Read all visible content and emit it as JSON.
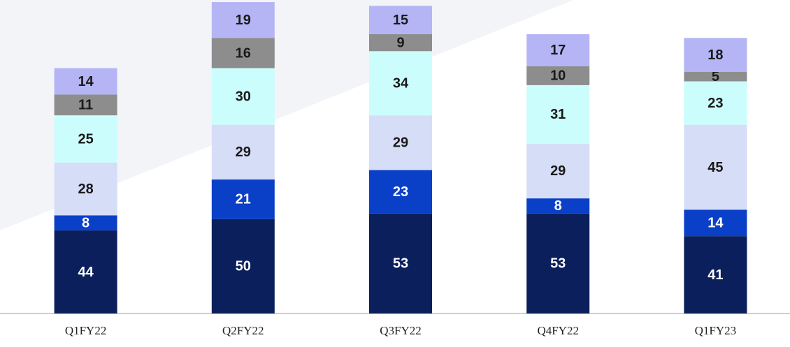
{
  "chart_data": {
    "type": "stacked_bar",
    "categories": [
      "Q1FY22",
      "Q2FY22",
      "Q3FY22",
      "Q4FY22",
      "Q1FY23"
    ],
    "series": [
      {
        "color": "#0b1f5c",
        "label_color": "#ffffff",
        "values": [
          44,
          50,
          53,
          53,
          41
        ]
      },
      {
        "color": "#0a3fc8",
        "label_color": "#ffffff",
        "values": [
          8,
          21,
          23,
          8,
          14
        ]
      },
      {
        "color": "#d6ddf7",
        "label_color": "#1a1a1a",
        "values": [
          28,
          29,
          29,
          29,
          45
        ]
      },
      {
        "color": "#ccfdfd",
        "label_color": "#1a1a1a",
        "values": [
          25,
          30,
          34,
          31,
          23
        ]
      },
      {
        "color": "#8d8d8d",
        "label_color": "#1a1a1a",
        "values": [
          11,
          16,
          9,
          10,
          5
        ]
      },
      {
        "color": "#b5b5f5",
        "label_color": "#1a1a1a",
        "values": [
          14,
          19,
          15,
          17,
          18
        ]
      }
    ]
  }
}
